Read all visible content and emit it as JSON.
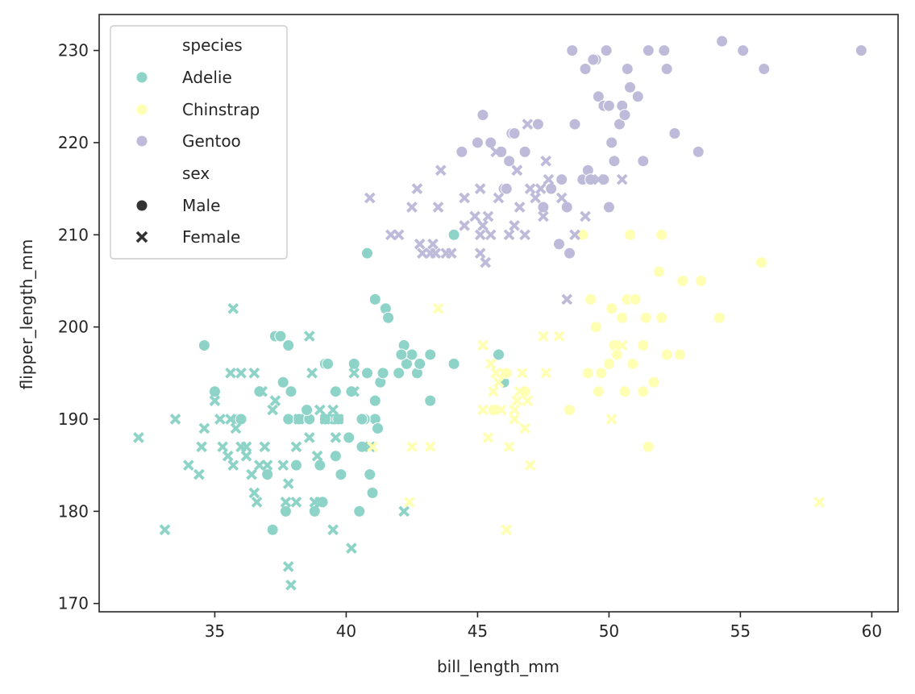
{
  "chart_data": {
    "type": "scatter",
    "title": "",
    "xlabel": "bill_length_mm",
    "ylabel": "flipper_length_mm",
    "xlim": [
      30.6,
      61.0
    ],
    "ylim": [
      169.1,
      233.9
    ],
    "xticks": [
      35,
      40,
      45,
      50,
      55,
      60
    ],
    "yticks": [
      170,
      180,
      190,
      200,
      210,
      220,
      230
    ],
    "grid": false,
    "legend": {
      "placement": "top-left",
      "hue_title": "species",
      "style_title": "sex",
      "species": [
        {
          "label": "Adelie",
          "color": "#8dd3c7"
        },
        {
          "label": "Chinstrap",
          "color": "#ffffb3"
        },
        {
          "label": "Gentoo",
          "color": "#bebada"
        }
      ],
      "sex": [
        {
          "label": "Male",
          "marker": "circle"
        },
        {
          "label": "Female",
          "marker": "x"
        }
      ]
    },
    "series": [
      {
        "species": "Adelie",
        "sex": "Male",
        "x": [
          34.6,
          35.0,
          35.9,
          36.7,
          37.0,
          37.2,
          37.3,
          37.5,
          37.7,
          37.8,
          37.9,
          38.1,
          38.2,
          38.6,
          38.8,
          39.0,
          39.1,
          39.2,
          39.3,
          39.5,
          39.6,
          39.7,
          39.8,
          40.1,
          40.2,
          40.3,
          40.5,
          40.6,
          40.8,
          40.9,
          41.0,
          41.1,
          41.1,
          41.1,
          41.3,
          41.5,
          41.6,
          42.0,
          42.2,
          42.3,
          42.5,
          42.7,
          42.8,
          43.2,
          44.1,
          40.8,
          37.6,
          38.5,
          39.6,
          40.7,
          41.2,
          41.4,
          42.1,
          43.2,
          44.1,
          45.8,
          46.0,
          36.0,
          37.8,
          39.2,
          40.6
        ],
        "y": [
          198,
          193,
          190,
          193,
          184,
          178,
          199,
          199,
          180,
          190,
          193,
          185,
          190,
          190,
          180,
          185,
          181,
          196,
          196,
          190,
          186,
          190,
          184,
          188,
          193,
          196,
          180,
          187,
          195,
          184,
          182,
          190,
          192,
          203,
          194,
          202,
          201,
          195,
          198,
          196,
          197,
          195,
          196,
          192,
          210,
          208,
          194,
          191,
          193,
          190,
          189,
          195,
          197,
          197,
          196,
          197,
          194,
          190,
          198,
          190,
          190
        ]
      },
      {
        "species": "Adelie",
        "sex": "Female",
        "x": [
          32.1,
          33.1,
          33.5,
          34.0,
          34.4,
          34.5,
          34.6,
          35.2,
          35.3,
          35.5,
          35.6,
          35.7,
          35.7,
          35.8,
          36.0,
          36.0,
          36.2,
          36.4,
          36.5,
          36.6,
          36.7,
          36.8,
          36.9,
          37.0,
          37.3,
          37.6,
          37.7,
          37.8,
          37.8,
          37.9,
          38.1,
          38.1,
          38.2,
          38.6,
          38.7,
          38.8,
          38.9,
          39.0,
          39.2,
          39.5,
          39.5,
          39.6,
          39.7,
          40.2,
          40.3,
          40.9,
          35.0,
          35.6,
          36.2,
          36.5,
          36.8,
          37.2,
          38.6,
          39.0,
          40.3,
          41.0,
          42.2
        ],
        "y": [
          188,
          178,
          190,
          185,
          184,
          187,
          189,
          190,
          187,
          186,
          190,
          202,
          185,
          189,
          195,
          187,
          186,
          184,
          182,
          181,
          185,
          193,
          187,
          185,
          192,
          185,
          181,
          174,
          183,
          172,
          187,
          181,
          190,
          199,
          195,
          181,
          186,
          181,
          190,
          178,
          191,
          188,
          190,
          176,
          193,
          187,
          192,
          195,
          187,
          195,
          193,
          191,
          188,
          191,
          195,
          187,
          180
        ]
      },
      {
        "species": "Chinstrap",
        "sex": "Male",
        "x": [
          45.6,
          46.1,
          46.8,
          48.5,
          49.0,
          49.2,
          49.3,
          49.5,
          49.6,
          49.7,
          50.0,
          50.1,
          50.2,
          50.3,
          50.5,
          50.6,
          50.7,
          50.8,
          50.9,
          51.0,
          51.3,
          51.3,
          51.4,
          51.5,
          51.7,
          51.9,
          52.0,
          52.0,
          52.2,
          52.7,
          52.8,
          53.5,
          54.2,
          55.8
        ],
        "y": [
          191,
          195,
          193,
          191,
          210,
          195,
          203,
          200,
          193,
          195,
          196,
          202,
          198,
          197,
          201,
          193,
          203,
          210,
          196,
          203,
          198,
          193,
          201,
          187,
          194,
          206,
          201,
          210,
          197,
          197,
          205,
          205,
          201,
          207
        ]
      },
      {
        "species": "Chinstrap",
        "sex": "Female",
        "x": [
          41.0,
          42.4,
          42.5,
          43.2,
          43.5,
          45.2,
          45.2,
          45.4,
          45.5,
          45.6,
          45.7,
          45.9,
          46.0,
          46.1,
          46.2,
          46.4,
          46.4,
          46.5,
          46.6,
          46.7,
          46.8,
          46.9,
          47.0,
          47.5,
          47.6,
          48.1,
          50.1,
          50.5,
          58.0,
          45.8
        ],
        "y": [
          187,
          181,
          187,
          187,
          202,
          198,
          191,
          188,
          196,
          193,
          195,
          191,
          195,
          178,
          187,
          190,
          191,
          192,
          193,
          195,
          189,
          192,
          185,
          199,
          195,
          199,
          190,
          198,
          181,
          194
        ]
      },
      {
        "species": "Gentoo",
        "sex": "Male",
        "x": [
          44.4,
          45.0,
          45.2,
          45.5,
          46.0,
          46.3,
          46.4,
          46.8,
          47.3,
          47.8,
          48.2,
          48.4,
          48.6,
          48.7,
          49.0,
          49.1,
          49.2,
          49.3,
          49.5,
          49.6,
          49.8,
          49.9,
          50.0,
          50.1,
          50.2,
          50.4,
          50.5,
          50.7,
          50.8,
          51.1,
          51.3,
          51.5,
          52.1,
          52.2,
          52.5,
          53.4,
          54.3,
          55.1,
          55.9,
          59.6,
          46.1,
          47.5,
          48.1,
          48.5,
          49.4,
          50.0,
          50.6,
          49.8,
          45.9,
          46.2
        ],
        "y": [
          219,
          220,
          223,
          220,
          215,
          221,
          221,
          219,
          222,
          215,
          216,
          213,
          230,
          222,
          216,
          228,
          217,
          216,
          229,
          225,
          224,
          230,
          224,
          220,
          218,
          222,
          224,
          228,
          226,
          225,
          218,
          230,
          230,
          228,
          221,
          219,
          231,
          230,
          228,
          230,
          215,
          213,
          209,
          208,
          229,
          213,
          223,
          216,
          219,
          218
        ]
      },
      {
        "species": "Gentoo",
        "sex": "Female",
        "x": [
          40.9,
          41.7,
          42.0,
          42.5,
          42.7,
          42.8,
          42.9,
          43.3,
          43.4,
          43.5,
          43.6,
          43.8,
          44.0,
          44.5,
          44.9,
          45.1,
          45.1,
          45.2,
          45.3,
          45.4,
          45.5,
          45.7,
          46.2,
          46.4,
          46.5,
          46.6,
          46.8,
          46.9,
          47.2,
          47.4,
          47.5,
          47.6,
          47.7,
          48.4,
          48.7,
          49.1,
          49.6,
          50.5,
          45.1,
          45.8,
          46.5,
          47.0,
          48.2,
          44.5,
          43.2
        ],
        "y": [
          214,
          210,
          210,
          213,
          215,
          209,
          208,
          209,
          208,
          213,
          217,
          208,
          208,
          214,
          212,
          215,
          210,
          211,
          207,
          212,
          210,
          219,
          210,
          211,
          217,
          213,
          210,
          222,
          214,
          215,
          212,
          218,
          216,
          203,
          210,
          212,
          216,
          216,
          208,
          214,
          217,
          215,
          214,
          211,
          208
        ]
      }
    ]
  }
}
